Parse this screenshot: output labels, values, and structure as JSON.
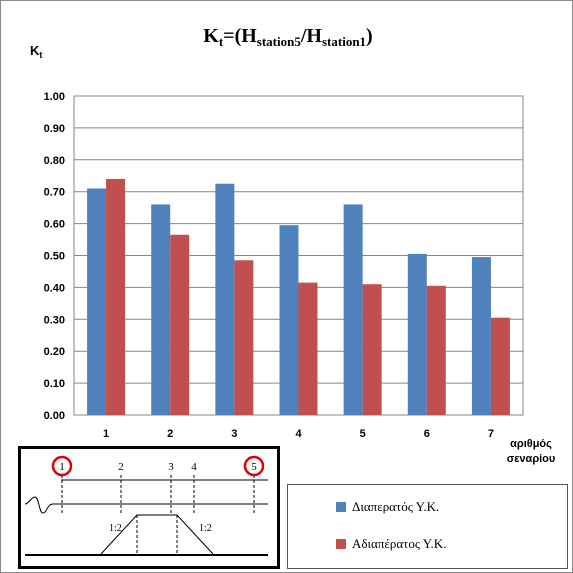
{
  "chart_data": {
    "type": "bar",
    "title": "K",
    "title_sub": "t",
    "title_formula": "=(H",
    "title_sub1": "station5",
    "title_mid": "/H",
    "title_sub2": "station1",
    "title_end": ")",
    "ylabel": "K",
    "ylabel_sub": "t",
    "xlabel_line1": "αριθμός",
    "xlabel_line2": "σεναρίου",
    "categories": [
      "1",
      "2",
      "3",
      "4",
      "5",
      "6",
      "7"
    ],
    "ylim": [
      0,
      1
    ],
    "yticks": [
      "0.00",
      "0.10",
      "0.20",
      "0.30",
      "0.40",
      "0.50",
      "0.60",
      "0.70",
      "0.80",
      "0.90",
      "1.00"
    ],
    "grid": true,
    "series": [
      {
        "name": "Διαπερατός Υ.Κ.",
        "color": "#4F81BD",
        "values": [
          0.71,
          0.66,
          0.725,
          0.595,
          0.66,
          0.505,
          0.495
        ]
      },
      {
        "name": "Αδιαπέρατος Υ.Κ.",
        "color": "#C0504D",
        "values": [
          0.74,
          0.565,
          0.485,
          0.415,
          0.41,
          0.405,
          0.305
        ]
      }
    ],
    "legend_position": "bottom-right"
  },
  "inset": {
    "station_labels": [
      "1",
      "2",
      "3",
      "4",
      "5"
    ],
    "slope_label_left": "1:2",
    "slope_label_right": "1:2"
  }
}
